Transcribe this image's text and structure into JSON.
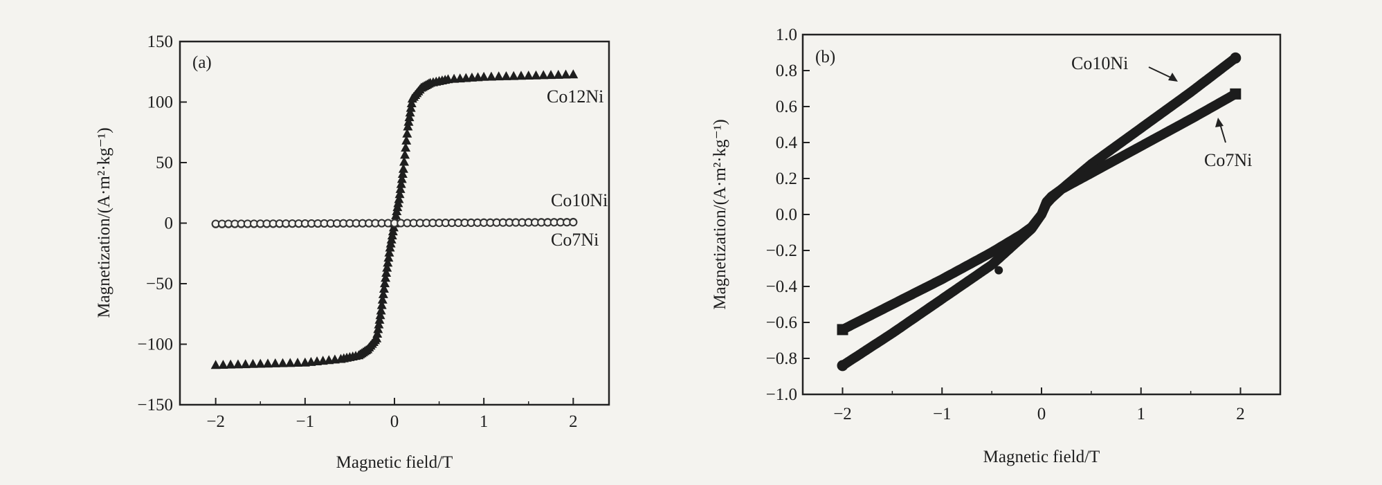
{
  "chart_data": [
    {
      "type": "scatter",
      "panel_label": "(a)",
      "xlabel": "Magnetic field/T",
      "ylabel": "Magnetization/(A·m²·kg⁻¹)",
      "xlim": [
        -2.4,
        2.4
      ],
      "ylim": [
        -150,
        150
      ],
      "xticks": [
        -2,
        -1,
        0,
        1,
        2
      ],
      "yticks": [
        -150,
        -100,
        -50,
        0,
        50,
        100,
        150
      ],
      "series": [
        {
          "name": "Co12Ni",
          "marker": "triangle",
          "x": [
            -2.0,
            -1.5,
            -1.0,
            -0.6,
            -0.4,
            -0.3,
            -0.2,
            -0.15,
            -0.1,
            -0.05,
            0.0,
            0.05,
            0.1,
            0.15,
            0.2,
            0.3,
            0.4,
            0.6,
            1.0,
            1.5,
            2.0
          ],
          "y": [
            -117,
            -116,
            -115,
            -112,
            -109,
            -104,
            -95,
            -72,
            -45,
            -20,
            0,
            20,
            45,
            80,
            103,
            112,
            116,
            119,
            121,
            122,
            123
          ]
        },
        {
          "name": "Co10Ni",
          "marker": "circle",
          "x": [
            -2.0,
            -1.0,
            0.0,
            1.0,
            2.0
          ],
          "y": [
            -0.8,
            -0.4,
            0.0,
            0.5,
            0.9
          ]
        },
        {
          "name": "Co7Ni",
          "marker": "circle",
          "x": [
            -2.0,
            -1.0,
            0.0,
            1.0,
            2.0
          ],
          "y": [
            -0.6,
            -0.3,
            0.0,
            0.35,
            0.7
          ]
        }
      ]
    },
    {
      "type": "line",
      "panel_label": "(b)",
      "xlabel": "Magnetic field/T",
      "ylabel": "Magnetization/(A·m²·kg⁻¹)",
      "xlim": [
        -2.4,
        2.4
      ],
      "ylim": [
        -1.0,
        1.0
      ],
      "xticks": [
        -2,
        -1,
        0,
        1,
        2
      ],
      "yticks": [
        -1.0,
        -0.8,
        -0.6,
        -0.4,
        -0.2,
        0.0,
        0.2,
        0.4,
        0.6,
        0.8,
        1.0
      ],
      "series": [
        {
          "name": "Co10Ni",
          "marker": "circle",
          "x": [
            -2.0,
            -1.5,
            -1.0,
            -0.5,
            -0.2,
            -0.1,
            0.0,
            0.05,
            0.1,
            0.2,
            0.5,
            1.0,
            1.5,
            1.95
          ],
          "y": [
            -0.84,
            -0.66,
            -0.47,
            -0.28,
            -0.13,
            -0.08,
            0.0,
            0.06,
            0.09,
            0.14,
            0.28,
            0.48,
            0.68,
            0.87
          ]
        },
        {
          "name": "Co7Ni",
          "marker": "square",
          "x": [
            -2.0,
            -1.5,
            -1.0,
            -0.5,
            -0.2,
            -0.1,
            0.0,
            0.05,
            0.1,
            0.2,
            0.5,
            1.0,
            1.5,
            1.95
          ],
          "y": [
            -0.64,
            -0.5,
            -0.36,
            -0.21,
            -0.11,
            -0.07,
            0.0,
            0.07,
            0.1,
            0.14,
            0.23,
            0.38,
            0.53,
            0.67
          ]
        }
      ],
      "extra_point": {
        "x": -0.43,
        "y": -0.31
      }
    }
  ]
}
